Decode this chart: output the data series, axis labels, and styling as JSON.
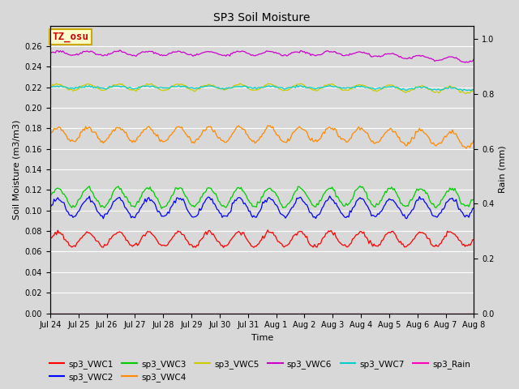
{
  "title": "SP3 Soil Moisture",
  "xlabel": "Time",
  "ylabel_left": "Soil Moisture (m3/m3)",
  "ylabel_right": "Rain (mm)",
  "background_color": "#d8d8d8",
  "plot_bg_color": "#d8d8d8",
  "ylim_left": [
    0.0,
    0.28
  ],
  "ylim_right": [
    0.0,
    1.05
  ],
  "yticks_left": [
    0.0,
    0.02,
    0.04,
    0.06,
    0.08,
    0.1,
    0.12,
    0.14,
    0.16,
    0.18,
    0.2,
    0.22,
    0.24,
    0.26
  ],
  "yticks_right": [
    0.0,
    0.2,
    0.4,
    0.6,
    0.8,
    1.0
  ],
  "n_points": 336,
  "days": 14,
  "series": {
    "sp3_VWC1": {
      "color": "#ff0000",
      "mean": 0.072,
      "amp": 0.007,
      "noise": 0.001
    },
    "sp3_VWC2": {
      "color": "#0000ff",
      "mean": 0.103,
      "amp": 0.009,
      "noise": 0.001
    },
    "sp3_VWC3": {
      "color": "#00cc00",
      "mean": 0.113,
      "amp": 0.009,
      "noise": 0.001
    },
    "sp3_VWC4": {
      "color": "#ff8800",
      "mean": 0.174,
      "amp": 0.007,
      "noise": 0.001
    },
    "sp3_VWC5": {
      "color": "#cccc00",
      "mean": 0.22,
      "amp": 0.003,
      "noise": 0.0005
    },
    "sp3_VWC6": {
      "color": "#cc00cc",
      "mean": 0.253,
      "amp": 0.002,
      "noise": 0.0005
    },
    "sp3_VWC7": {
      "color": "#00cccc",
      "mean": 0.22,
      "amp": 0.001,
      "noise": 0.0005
    },
    "sp3_Rain": {
      "color": "#ff00bb",
      "mean": 0.0,
      "amp": 0.0,
      "noise": 0.0
    }
  },
  "series_order": [
    "sp3_VWC1",
    "sp3_VWC2",
    "sp3_VWC3",
    "sp3_VWC4",
    "sp3_VWC5",
    "sp3_VWC6",
    "sp3_VWC7"
  ],
  "xtick_labels": [
    "Jul 24",
    "Jul 25",
    "Jul 26",
    "Jul 27",
    "Jul 28",
    "Jul 29",
    "Jul 30",
    "Jul 31",
    "Aug 1",
    "Aug 2",
    "Aug 3",
    "Aug 4",
    "Aug 5",
    "Aug 6",
    "Aug 7",
    "Aug 8"
  ],
  "annotation_text": "TZ_osu",
  "annotation_color": "#cc0000",
  "annotation_bg": "#ffffcc",
  "annotation_border": "#ccaa00",
  "legend_keys": [
    "sp3_VWC1",
    "sp3_VWC2",
    "sp3_VWC3",
    "sp3_VWC4",
    "sp3_VWC5",
    "sp3_VWC6",
    "sp3_VWC7",
    "sp3_Rain"
  ],
  "figsize": [
    6.4,
    4.8
  ],
  "dpi": 100
}
